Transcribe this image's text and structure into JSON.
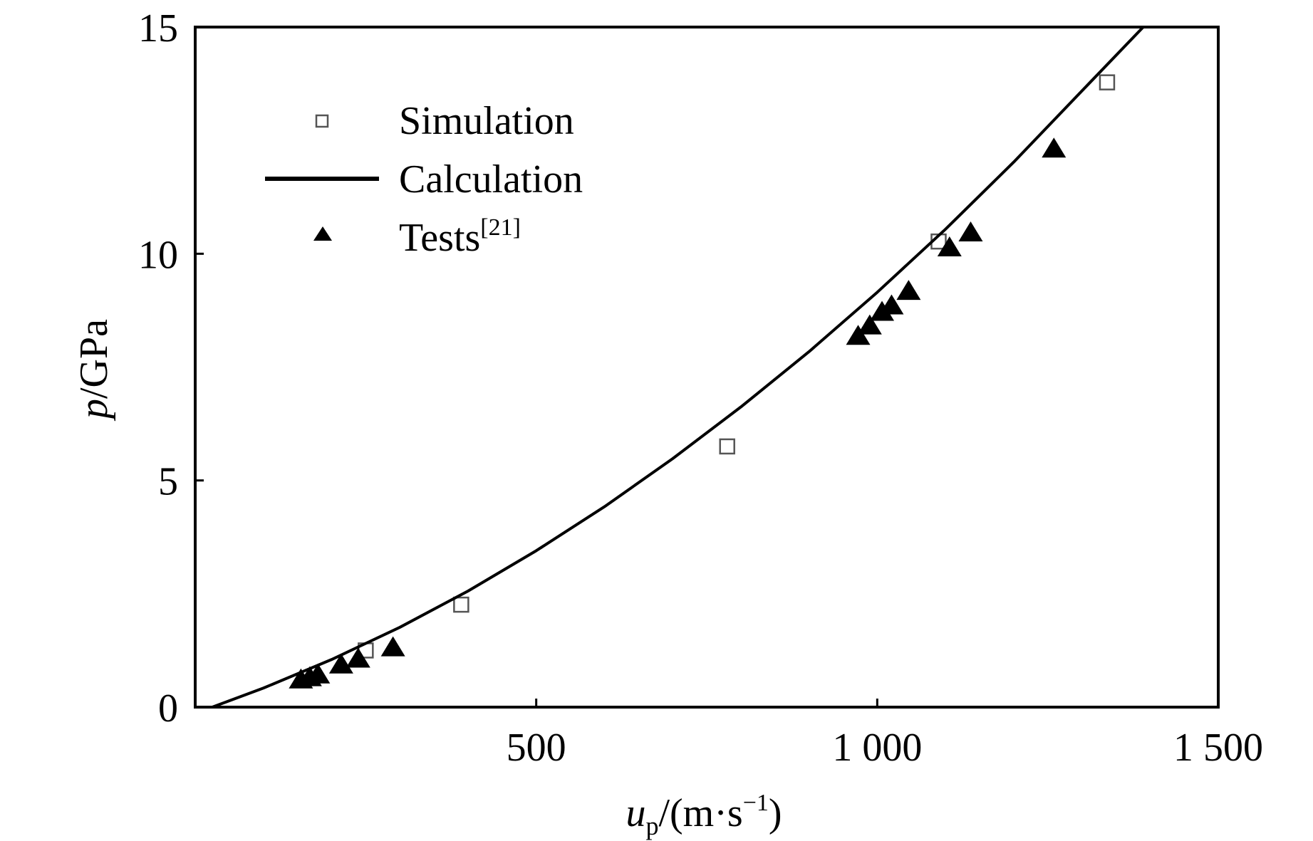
{
  "chart_data": {
    "type": "scatter",
    "title": "",
    "xlabel": {
      "main": "u",
      "sub": "p",
      "rest": "/(m·s",
      "sup": "−1",
      "close": ")"
    },
    "ylabel": {
      "italic": "p",
      "rest": "/GPa"
    },
    "xlim": [
      0,
      1500
    ],
    "ylim": [
      0,
      15
    ],
    "xticks": [
      500,
      1000,
      1500
    ],
    "xtick_labels": [
      "500",
      "1 000",
      "1 500"
    ],
    "yticks": [
      0,
      5,
      10,
      15
    ],
    "ytick_labels": [
      "0",
      "5",
      "10",
      "15"
    ],
    "grid": false,
    "legend_position": "top-left",
    "series": [
      {
        "name": "Simulation",
        "type": "scatter",
        "marker": "open-square",
        "color": "#555555",
        "x": [
          250,
          390,
          780,
          1090,
          1337
        ],
        "y": [
          1.25,
          2.26,
          5.75,
          10.27,
          13.78
        ]
      },
      {
        "name": "Calculation",
        "type": "line",
        "color": "#000000",
        "x": [
          25,
          100,
          200,
          300,
          400,
          500,
          600,
          700,
          800,
          900,
          1000,
          1100,
          1200,
          1300,
          1390
        ],
        "y": [
          0,
          0.42,
          1.05,
          1.76,
          2.56,
          3.45,
          4.42,
          5.48,
          6.62,
          7.84,
          9.15,
          10.54,
          12.02,
          13.59,
          15.0
        ]
      },
      {
        "name": "Tests",
        "name_sup": "[21]",
        "type": "scatter",
        "marker": "filled-triangle",
        "color": "#000000",
        "x": [
          155,
          168,
          180,
          214,
          239,
          290,
          972,
          989,
          1007,
          1021,
          1046,
          1106,
          1137,
          1259
        ],
        "y": [
          0.6,
          0.65,
          0.71,
          0.93,
          1.06,
          1.31,
          8.18,
          8.41,
          8.71,
          8.85,
          9.17,
          10.13,
          10.46,
          12.31
        ]
      }
    ]
  }
}
